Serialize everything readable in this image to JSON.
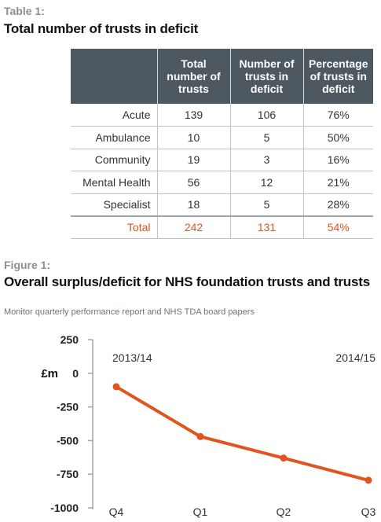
{
  "table": {
    "label": "Table 1:",
    "title": "Total number of trusts in deficit",
    "headers": [
      "",
      "Total number of trusts",
      "Number of trusts in deficit",
      "Percentage of trusts in deficit"
    ],
    "rows": [
      {
        "label": "Acute",
        "total": "139",
        "deficit": "106",
        "pct": "76%"
      },
      {
        "label": "Ambulance",
        "total": "10",
        "deficit": "5",
        "pct": "50%"
      },
      {
        "label": "Community",
        "total": "19",
        "deficit": "3",
        "pct": "16%"
      },
      {
        "label": "Mental Health",
        "total": "56",
        "deficit": "12",
        "pct": "21%"
      },
      {
        "label": "Specialist",
        "total": "18",
        "deficit": "5",
        "pct": "28%"
      }
    ],
    "total_row": {
      "label": "Total",
      "total": "242",
      "deficit": "131",
      "pct": "54%"
    }
  },
  "figure": {
    "label": "Figure 1:",
    "title": "Overall surplus/deficit for NHS foundation trusts and trusts",
    "source": "Monitor quarterly performance report and NHS TDA board papers"
  },
  "chart_data": {
    "type": "line",
    "title": "Overall surplus/deficit for NHS foundation trusts and trusts",
    "ylabel": "£m",
    "categories": [
      "Q4",
      "Q1",
      "Q2",
      "Q3"
    ],
    "year_labels": [
      "2013/14",
      "2014/15"
    ],
    "yticks": [
      250,
      0,
      -250,
      -500,
      -750,
      -1000
    ],
    "ylim": [
      -1000,
      250
    ],
    "series": [
      {
        "values": [
          -100,
          -470,
          -630,
          -795
        ],
        "color": "#e1531f"
      }
    ],
    "grid": false
  }
}
